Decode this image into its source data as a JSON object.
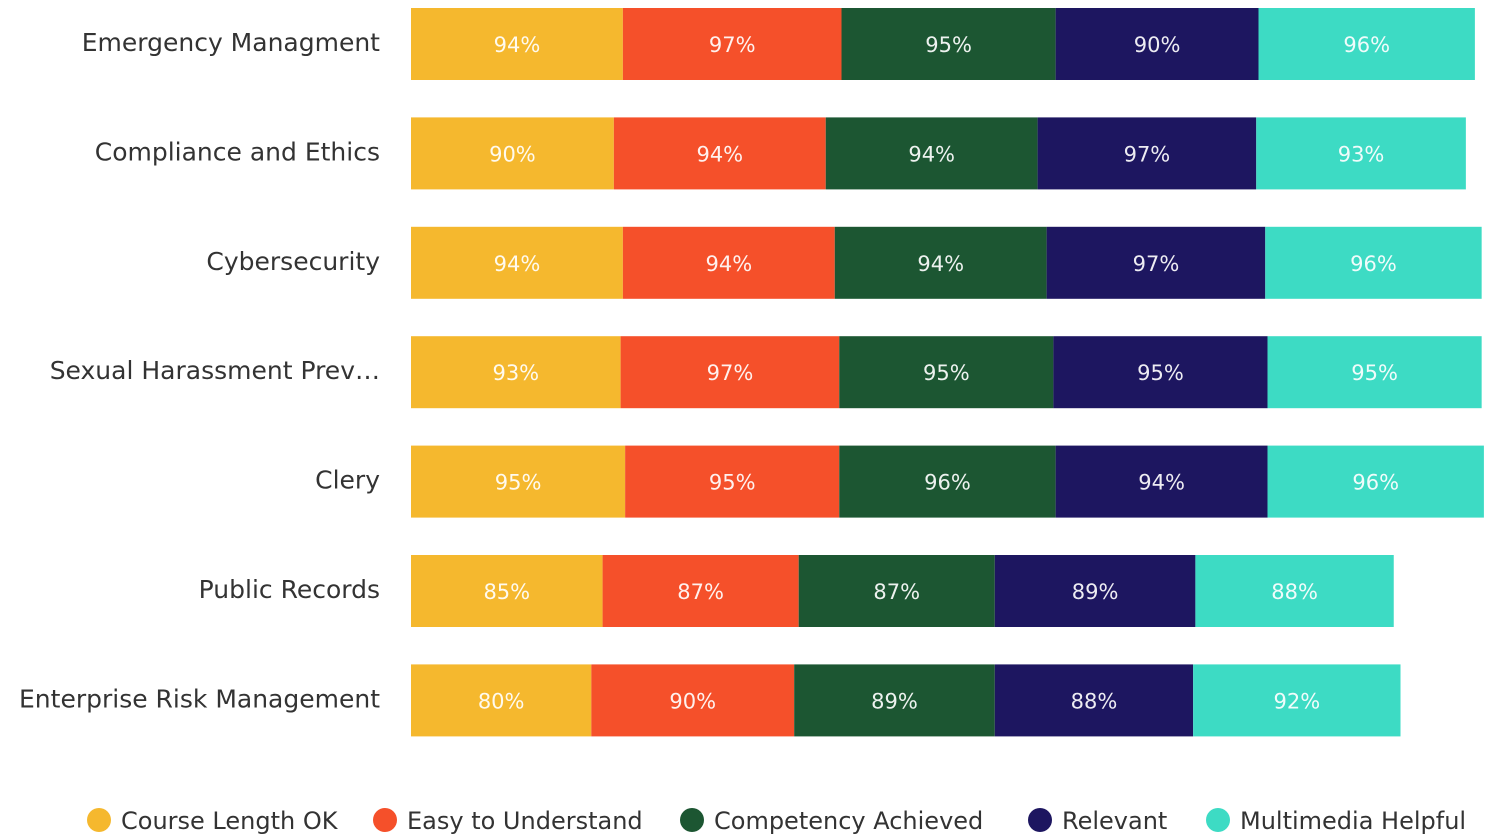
{
  "chart_data": {
    "type": "stacked-bar-horizontal",
    "categories": [
      "Emergency Managment",
      "Compliance and Ethics",
      "Cybersecurity",
      "Sexual Harassment Prev…",
      "Clery",
      "Public Records",
      "Enterprise Risk Management"
    ],
    "series": [
      {
        "name": "Course Length OK",
        "color": "#f5b82e",
        "values": [
          94,
          90,
          94,
          93,
          95,
          85,
          80
        ],
        "value_labels": [
          "94%",
          "90%",
          "94%",
          "93%",
          "95%",
          "85%",
          "80%"
        ]
      },
      {
        "name": "Easy to Understand",
        "color": "#f5502a",
        "values": [
          97,
          94,
          94,
          97,
          95,
          87,
          90
        ],
        "value_labels": [
          "97%",
          "94%",
          "94%",
          "97%",
          "95%",
          "87%",
          "90%"
        ]
      },
      {
        "name": "Competency Achieved",
        "color": "#1c5632",
        "values": [
          95,
          94,
          94,
          95,
          96,
          87,
          89
        ],
        "value_labels": [
          "95%",
          "94%",
          "94%",
          "95%",
          "96%",
          "87%",
          "89%"
        ]
      },
      {
        "name": "Relevant",
        "color": "#1d1660",
        "values": [
          90,
          97,
          97,
          95,
          94,
          89,
          88
        ],
        "value_labels": [
          "90%",
          "97%",
          "97%",
          "95%",
          "94%",
          "89%",
          "88%"
        ]
      },
      {
        "name": "Multimedia Helpful",
        "color": "#3ddbc4",
        "values": [
          96,
          93,
          96,
          95,
          96,
          88,
          92
        ],
        "value_labels": [
          "96%",
          "93%",
          "96%",
          "95%",
          "96%",
          "88%",
          "92%"
        ]
      }
    ],
    "legend": "bottom"
  }
}
